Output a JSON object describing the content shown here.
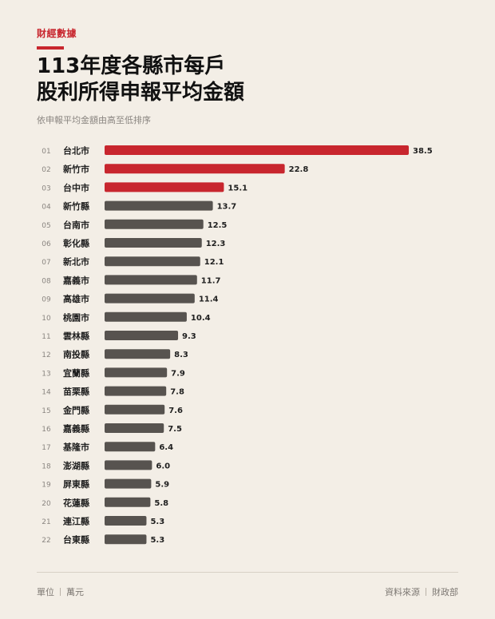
{
  "kicker": "財經數據",
  "title_line1": "113年度各縣市每戶",
  "title_line2": "股利所得申報平均金額",
  "subtitle": "依申報平均金額由高至低排序",
  "colors": {
    "accent": "#c8262e",
    "bar_default": "#57534f",
    "background": "#f3eee6"
  },
  "chart_data": {
    "type": "bar",
    "orientation": "horizontal",
    "highlight_top": 3,
    "ranks": [
      "01",
      "02",
      "03",
      "04",
      "05",
      "06",
      "07",
      "08",
      "09",
      "10",
      "11",
      "12",
      "13",
      "14",
      "15",
      "16",
      "17",
      "18",
      "19",
      "20",
      "21",
      "22"
    ],
    "categories": [
      "台北市",
      "新竹市",
      "台中市",
      "新竹縣",
      "台南市",
      "彰化縣",
      "新北市",
      "嘉義市",
      "高雄市",
      "桃園市",
      "雲林縣",
      "南投縣",
      "宜蘭縣",
      "苗栗縣",
      "金門縣",
      "嘉義縣",
      "基隆市",
      "澎湖縣",
      "屏東縣",
      "花蓮縣",
      "連江縣",
      "台東縣"
    ],
    "values": [
      38.5,
      22.8,
      15.1,
      13.7,
      12.5,
      12.3,
      12.1,
      11.7,
      11.4,
      10.4,
      9.3,
      8.3,
      7.9,
      7.8,
      7.6,
      7.5,
      6.4,
      6.0,
      5.9,
      5.8,
      5.3,
      5.3
    ],
    "value_labels": [
      "38.5",
      "22.8",
      "15.1",
      "13.7",
      "12.5",
      "12.3",
      "12.1",
      "11.7",
      "11.4",
      "10.4",
      "9.3",
      "8.3",
      "7.9",
      "7.8",
      "7.6",
      "7.5",
      "6.4",
      "6.0",
      "5.9",
      "5.8",
      "5.3",
      "5.3"
    ],
    "xlim": [
      0,
      38.5
    ]
  },
  "footer": {
    "unit_label": "單位",
    "unit_value": "萬元",
    "source_label": "資料來源",
    "source_value": "財政部"
  }
}
